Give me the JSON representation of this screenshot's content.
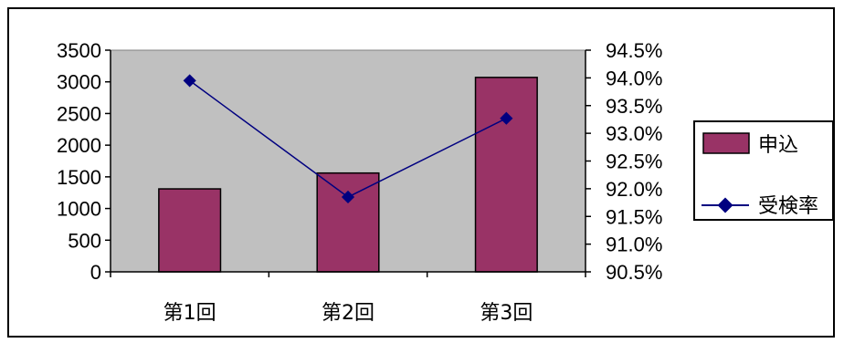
{
  "chart_data": {
    "type": "bar",
    "categories": [
      "第1回",
      "第2回",
      "第3回"
    ],
    "series": [
      {
        "name": "申込",
        "type": "bar",
        "axis": "left",
        "values": [
          1310,
          1560,
          3070
        ]
      },
      {
        "name": "受検率",
        "type": "line",
        "axis": "right",
        "values": [
          0.9395,
          0.9185,
          0.9327
        ]
      }
    ],
    "left_axis": {
      "ylim": [
        0,
        3500
      ],
      "ticks": [
        0,
        500,
        1000,
        1500,
        2000,
        2500,
        3000,
        3500
      ],
      "tick_labels": [
        "0",
        "500",
        "1000",
        "1500",
        "2000",
        "2500",
        "3000",
        "3500"
      ]
    },
    "right_axis": {
      "ylim": [
        0.905,
        0.945
      ],
      "ticks": [
        0.905,
        0.91,
        0.915,
        0.92,
        0.925,
        0.93,
        0.935,
        0.94,
        0.945
      ],
      "tick_labels": [
        "90.5%",
        "91.0%",
        "91.5%",
        "92.0%",
        "92.5%",
        "93.0%",
        "93.5%",
        "94.0%",
        "94.5%"
      ]
    },
    "title": "",
    "grid": false,
    "legend_position": "right",
    "colors": {
      "bar_fill": "#993366",
      "line": "#000080",
      "marker": "#000080",
      "plot_background": "#c0c0c0"
    }
  }
}
